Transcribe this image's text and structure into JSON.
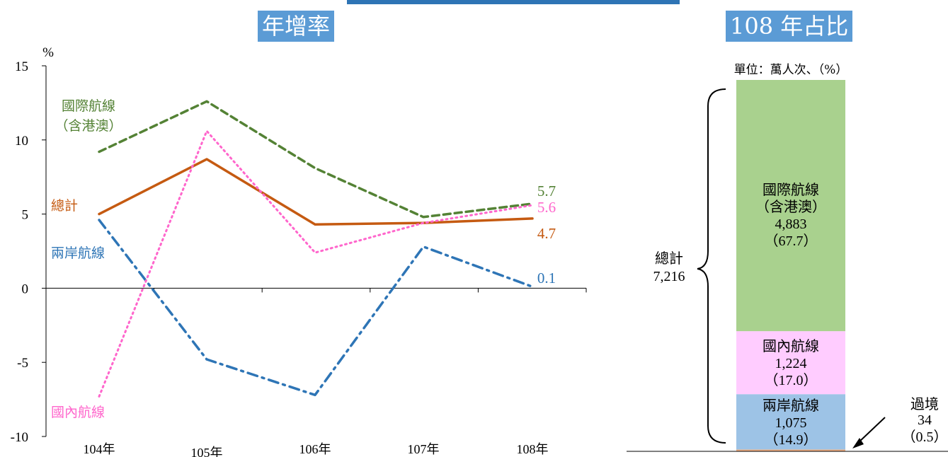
{
  "header": {
    "left_title": "年增率",
    "right_title": "108 年占比"
  },
  "chart_data": [
    {
      "type": "line",
      "title": "年增率",
      "ylabel": "%",
      "ylim": [
        -10,
        15
      ],
      "yticks": [
        15,
        10,
        5,
        0,
        -5,
        -10
      ],
      "categories": [
        "104年",
        "105年",
        "106年",
        "107年",
        "108年"
      ],
      "series": [
        {
          "name": "國際航線（含港澳）",
          "label_lines": [
            "國際航線",
            "（含港澳）"
          ],
          "color": "#548235",
          "style": "dashed",
          "values": [
            9.2,
            12.6,
            8.1,
            4.8,
            5.7
          ],
          "end_label": "5.7"
        },
        {
          "name": "總計",
          "label_lines": [
            "總計"
          ],
          "color": "#c55a11",
          "style": "solid",
          "values": [
            5.0,
            8.7,
            4.3,
            4.4,
            4.7
          ],
          "end_label": "4.7"
        },
        {
          "name": "兩岸航線",
          "label_lines": [
            "兩岸航線"
          ],
          "color": "#2e75b6",
          "style": "dashdot",
          "values": [
            4.6,
            -4.8,
            -7.2,
            2.8,
            0.1
          ],
          "end_label": "0.1"
        },
        {
          "name": "國內航線",
          "label_lines": [
            "國內航線"
          ],
          "color": "#ff66cc",
          "style": "dotted",
          "values": [
            -7.3,
            10.6,
            2.4,
            4.4,
            5.6
          ],
          "end_label": "5.6"
        }
      ],
      "grid": false
    },
    {
      "type": "bar",
      "title": "108 年占比",
      "unit_note": "單位：萬人次、（%）",
      "stacked": true,
      "total": {
        "label": "總計",
        "value": "7,216"
      },
      "segments": [
        {
          "name": "國際航線",
          "sub": "（含港澳）",
          "value": 4883,
          "value_text": "4,883",
          "percent": 67.7,
          "percent_text": "（67.7）",
          "color": "#a9d18e"
        },
        {
          "name": "國內航線",
          "value": 1224,
          "value_text": "1,224",
          "percent": 17.0,
          "percent_text": "（17.0）",
          "color": "#ffccff"
        },
        {
          "name": "兩岸航線",
          "value": 1075,
          "value_text": "1,075",
          "percent": 14.9,
          "percent_text": "（14.9）",
          "color": "#9dc3e6"
        },
        {
          "name": "過境",
          "value": 34,
          "value_text": "34",
          "percent": 0.5,
          "percent_text": "（0.5）",
          "color": "#f4b183"
        }
      ]
    }
  ]
}
